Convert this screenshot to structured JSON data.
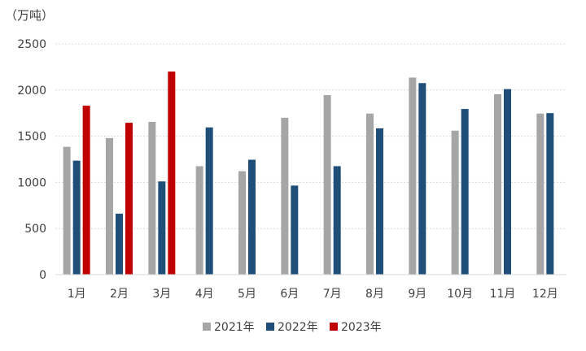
{
  "chart_data": {
    "type": "bar",
    "unit_label": "（万吨）",
    "categories": [
      "1月",
      "2月",
      "3月",
      "4月",
      "5月",
      "6月",
      "7月",
      "8月",
      "9月",
      "10月",
      "11月",
      "12月"
    ],
    "series": [
      {
        "name": "2021年",
        "color": "#a6a6a6",
        "values": [
          1385,
          1480,
          1655,
          1175,
          1120,
          1700,
          1945,
          1745,
          2135,
          1560,
          1955,
          1745
        ]
      },
      {
        "name": "2022年",
        "color": "#1f4e79",
        "values": [
          1235,
          660,
          1010,
          1595,
          1245,
          965,
          1175,
          1585,
          2075,
          1795,
          2010,
          1750
        ]
      },
      {
        "name": "2023年",
        "color": "#c00000",
        "values": [
          1830,
          1645,
          2200,
          null,
          null,
          null,
          null,
          null,
          null,
          null,
          null,
          null
        ]
      }
    ],
    "ylim": [
      0,
      2500
    ],
    "yticks": [
      0,
      500,
      1000,
      1500,
      2000,
      2500
    ],
    "grid": true,
    "legend_position": "bottom-center"
  }
}
